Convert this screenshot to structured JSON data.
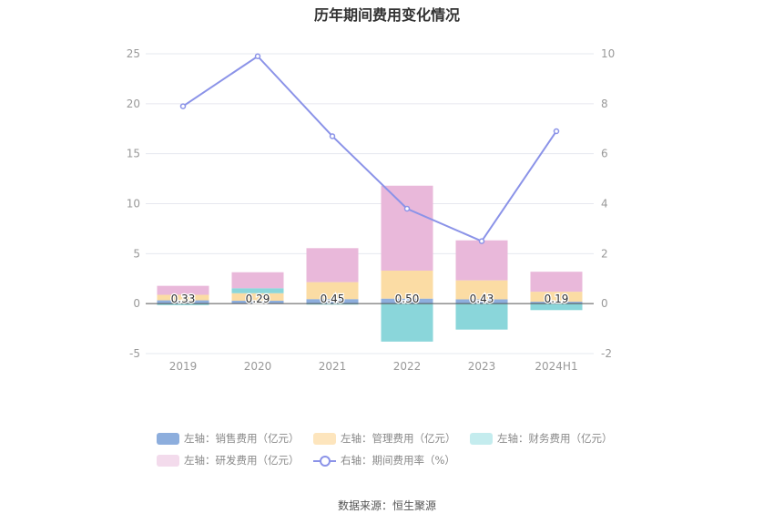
{
  "title": "历年期间费用变化情况",
  "source": "数据来源：恒生聚源",
  "colors": {
    "sales": "#8daedd",
    "admin": "#fbdca4",
    "finance": "#8ad6da",
    "rd": "#e9b8da",
    "ratio": "#8b93e8"
  },
  "legend": [
    {
      "key": "sales",
      "label": "左轴：销售费用（亿元）"
    },
    {
      "key": "admin",
      "label": "左轴：管理费用（亿元）"
    },
    {
      "key": "finance",
      "label": "左轴：财务费用（亿元）"
    },
    {
      "key": "rd",
      "label": "左轴：研发费用（亿元）"
    },
    {
      "key": "ratio",
      "label": "右轴：期间费用率（%）"
    }
  ],
  "chart_data": {
    "type": "bar",
    "stacked": true,
    "categories": [
      "2019",
      "2020",
      "2021",
      "2022",
      "2023",
      "2024H1"
    ],
    "left_axis": {
      "ylim": [
        -5,
        25
      ],
      "ticks": [
        -5,
        0,
        5,
        10,
        15,
        20,
        25
      ]
    },
    "right_axis": {
      "ylim": [
        -2,
        10
      ],
      "ticks": [
        -2,
        0,
        2,
        4,
        6,
        8,
        10
      ]
    },
    "series": [
      {
        "key": "sales",
        "name": "左轴：销售费用（亿元）",
        "type": "bar",
        "axis": "left",
        "values": [
          0.33,
          0.29,
          0.45,
          0.5,
          0.43,
          0.19
        ],
        "labels": [
          "0.33",
          "0.29",
          "0.45",
          "0.50",
          "0.43",
          "0.19"
        ]
      },
      {
        "key": "admin",
        "name": "左轴：管理费用（亿元）",
        "type": "bar",
        "axis": "left",
        "values": [
          0.55,
          0.75,
          1.7,
          2.8,
          1.9,
          1.0
        ]
      },
      {
        "key": "finance",
        "name": "左轴：财务费用（亿元）",
        "type": "bar",
        "axis": "left",
        "values": [
          -0.15,
          0.5,
          -0.1,
          -3.8,
          -2.6,
          -0.65
        ]
      },
      {
        "key": "rd",
        "name": "左轴：研发费用（亿元）",
        "type": "bar",
        "axis": "left",
        "values": [
          0.9,
          1.6,
          3.4,
          8.5,
          4.0,
          2.0
        ]
      },
      {
        "key": "ratio",
        "name": "右轴：期间费用率（%）",
        "type": "line",
        "axis": "right",
        "values": [
          7.9,
          9.9,
          6.7,
          3.8,
          2.5,
          6.9
        ]
      }
    ],
    "grid": true,
    "legend_position": "bottom"
  }
}
